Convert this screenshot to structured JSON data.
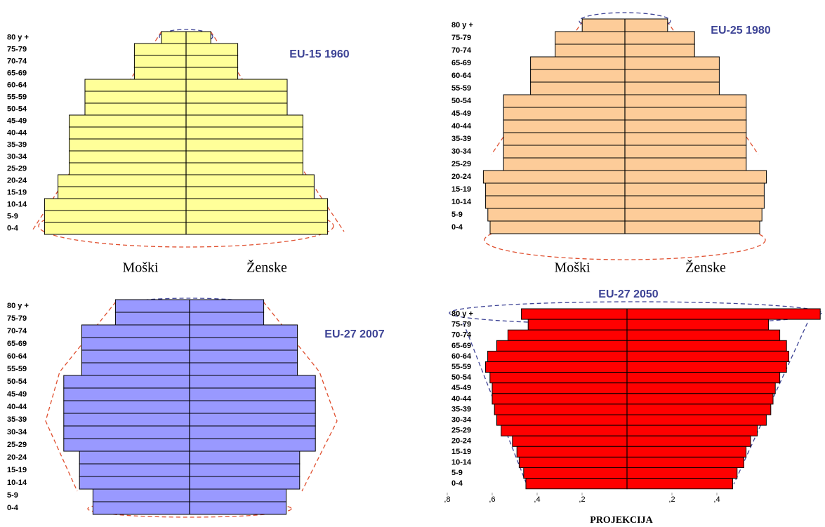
{
  "chart_data": [
    {
      "type": "pyramid",
      "title": "EU-15  1960",
      "categories": [
        "80 y +",
        "75-79",
        "70-74",
        "65-69",
        "60-64",
        "55-59",
        "50-54",
        "45-49",
        "40-44",
        "35-39",
        "30-34",
        "25-29",
        "20-24",
        "15-19",
        "10-14",
        "5-9",
        "0-4"
      ],
      "series": [
        {
          "name": "Moški",
          "color": "#ffff99",
          "values": [
            0.11,
            0.23,
            0.23,
            0.23,
            0.45,
            0.45,
            0.45,
            0.52,
            0.52,
            0.52,
            0.52,
            0.52,
            0.57,
            0.57,
            0.63,
            0.63,
            0.63
          ]
        },
        {
          "name": "Ženske",
          "color": "#ffff99",
          "values": [
            0.11,
            0.23,
            0.23,
            0.23,
            0.45,
            0.45,
            0.45,
            0.52,
            0.52,
            0.52,
            0.52,
            0.52,
            0.57,
            0.57,
            0.63,
            0.63,
            0.63
          ]
        }
      ]
    },
    {
      "type": "pyramid",
      "title": "EU-25  1980",
      "categories": [
        "80 y +",
        "75-79",
        "70-74",
        "65-69",
        "60-64",
        "55-59",
        "50-54",
        "45-49",
        "40-44",
        "35-39",
        "30-34",
        "25-29",
        "20-24",
        "15-19",
        "10-14",
        "5-9",
        "0-4"
      ],
      "series": [
        {
          "name": "Moški",
          "color": "#fdcc99",
          "values": [
            0.19,
            0.31,
            0.31,
            0.42,
            0.42,
            0.42,
            0.54,
            0.54,
            0.54,
            0.54,
            0.54,
            0.54,
            0.63,
            0.62,
            0.62,
            0.61,
            0.6
          ]
        },
        {
          "name": "Ženske",
          "color": "#fdcc99",
          "values": [
            0.19,
            0.31,
            0.31,
            0.42,
            0.42,
            0.42,
            0.54,
            0.54,
            0.54,
            0.54,
            0.54,
            0.54,
            0.63,
            0.62,
            0.62,
            0.61,
            0.6
          ]
        }
      ]
    },
    {
      "type": "pyramid",
      "title": "EU-27  2007",
      "categories": [
        "80 y +",
        "75-79",
        "70-74",
        "65-69",
        "60-64",
        "55-59",
        "50-54",
        "45-49",
        "40-44",
        "35-39",
        "30-34",
        "25-29",
        "20-24",
        "15-19",
        "10-14",
        "5-9",
        "0-4"
      ],
      "series": [
        {
          "color": "#9999ff",
          "values": [
            0.33,
            0.33,
            0.48,
            0.48,
            0.48,
            0.48,
            0.56,
            0.56,
            0.56,
            0.56,
            0.56,
            0.56,
            0.49,
            0.49,
            0.49,
            0.43,
            0.43
          ]
        },
        {
          "color": "#9999ff",
          "values": [
            0.33,
            0.33,
            0.48,
            0.48,
            0.48,
            0.48,
            0.56,
            0.56,
            0.56,
            0.56,
            0.56,
            0.56,
            0.49,
            0.49,
            0.49,
            0.43,
            0.43
          ]
        }
      ]
    },
    {
      "type": "pyramid",
      "title": "EU-27  2050",
      "annotation": "PROJEKCIJA",
      "categories": [
        "80 y +",
        "75-79",
        "70-74",
        "65-69",
        "60-64",
        "55-59",
        "50-54",
        "45-49",
        "40-44",
        "35-39",
        "30-34",
        "25-29",
        "20-24",
        "15-19",
        "10-14",
        "5-9",
        "0-4"
      ],
      "xlim": [
        -0.82,
        0.86
      ],
      "xticks": [
        {
          "value": -0.8,
          "label": ",8"
        },
        {
          "value": -0.6,
          "label": ",6"
        },
        {
          "value": -0.4,
          "label": ",4"
        },
        {
          "value": -0.2,
          "label": ",2"
        },
        {
          "value": 0.2,
          "label": ",2"
        },
        {
          "value": 0.4,
          "label": ",4"
        }
      ],
      "series": [
        {
          "color": "#ff0000",
          "values": [
            0.47,
            0.44,
            0.53,
            0.58,
            0.62,
            0.63,
            0.61,
            0.6,
            0.6,
            0.59,
            0.58,
            0.56,
            0.51,
            0.49,
            0.48,
            0.46,
            0.45
          ]
        },
        {
          "color": "#ff0000",
          "values": [
            0.86,
            0.63,
            0.68,
            0.71,
            0.72,
            0.71,
            0.68,
            0.66,
            0.65,
            0.64,
            0.62,
            0.58,
            0.55,
            0.53,
            0.52,
            0.49,
            0.47
          ]
        }
      ]
    }
  ]
}
